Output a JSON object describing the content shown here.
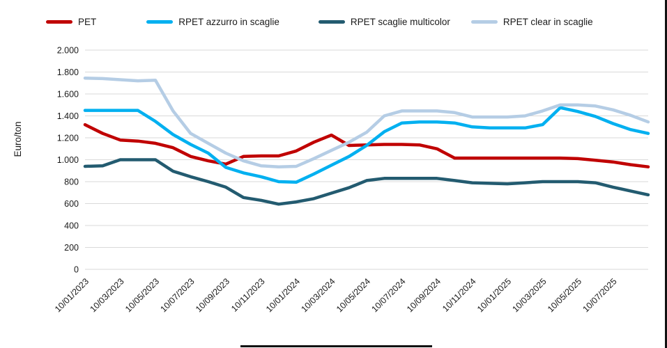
{
  "chart_data": {
    "type": "line",
    "title": "",
    "ylabel": "Euro/ton",
    "xlabel": "",
    "grid": true,
    "legend_position": "top",
    "ylim": [
      0,
      2000
    ],
    "y_tick_step": 200,
    "y_tick_labels": [
      "0",
      "200",
      "400",
      "600",
      "800",
      "1.000",
      "1.200",
      "1.400",
      "1.600",
      "1.800",
      "2.000"
    ],
    "x_tick_labels": [
      "10/01/2023",
      "10/03/2023",
      "10/05/2023",
      "10/07/2023",
      "10/09/2023",
      "10/11/2023",
      "10/01/2024",
      "10/03/2024",
      "10/05/2024",
      "10/07/2024",
      "10/09/2024",
      "10/11/2024",
      "10/01/2025",
      "10/03/2025",
      "10/05/2025",
      "10/07/2025"
    ],
    "x_tick_every": 2,
    "x_monthly": [
      "10/01/2023",
      "10/02/2023",
      "10/03/2023",
      "10/04/2023",
      "10/05/2023",
      "10/06/2023",
      "10/07/2023",
      "10/08/2023",
      "10/09/2023",
      "10/10/2023",
      "10/11/2023",
      "10/12/2023",
      "10/01/2024",
      "10/02/2024",
      "10/03/2024",
      "10/04/2024",
      "10/05/2024",
      "10/06/2024",
      "10/07/2024",
      "10/08/2024",
      "10/09/2024",
      "10/10/2024",
      "10/11/2024",
      "10/12/2024",
      "10/01/2025",
      "10/02/2025",
      "10/03/2025",
      "10/04/2025",
      "10/05/2025",
      "10/06/2025",
      "10/07/2025",
      "10/08/2025",
      "10/09/2025"
    ],
    "series": [
      {
        "name": "PET",
        "color": "#C00000",
        "values": [
          1320,
          1240,
          1180,
          1170,
          1150,
          1110,
          1030,
          990,
          960,
          1030,
          1035,
          1035,
          1080,
          1160,
          1225,
          1130,
          1135,
          1140,
          1140,
          1135,
          1100,
          1015,
          1015,
          1015,
          1015,
          1015,
          1015,
          1015,
          1010,
          995,
          980,
          955,
          935
        ]
      },
      {
        "name": "RPET azzurro in scaglie",
        "color": "#00B0F0",
        "values": [
          1450,
          1450,
          1450,
          1450,
          1350,
          1230,
          1140,
          1060,
          930,
          880,
          845,
          800,
          795,
          870,
          950,
          1030,
          1130,
          1255,
          1335,
          1345,
          1345,
          1335,
          1300,
          1290,
          1290,
          1290,
          1320,
          1475,
          1440,
          1395,
          1330,
          1275,
          1240
        ]
      },
      {
        "name": "RPET scaglie multicolor",
        "color": "#235B70",
        "values": [
          940,
          945,
          1000,
          1000,
          1000,
          895,
          845,
          800,
          750,
          655,
          630,
          595,
          615,
          645,
          695,
          745,
          810,
          830,
          830,
          830,
          830,
          810,
          790,
          785,
          780,
          790,
          800,
          800,
          800,
          790,
          750,
          715,
          680
        ]
      },
      {
        "name": "RPET clear in scaglie",
        "color": "#B5CDE5",
        "values": [
          1745,
          1740,
          1730,
          1720,
          1725,
          1445,
          1240,
          1150,
          1060,
          990,
          945,
          935,
          940,
          1010,
          1085,
          1160,
          1250,
          1400,
          1445,
          1445,
          1445,
          1430,
          1390,
          1390,
          1390,
          1400,
          1445,
          1500,
          1500,
          1490,
          1455,
          1405,
          1345
        ]
      }
    ]
  }
}
